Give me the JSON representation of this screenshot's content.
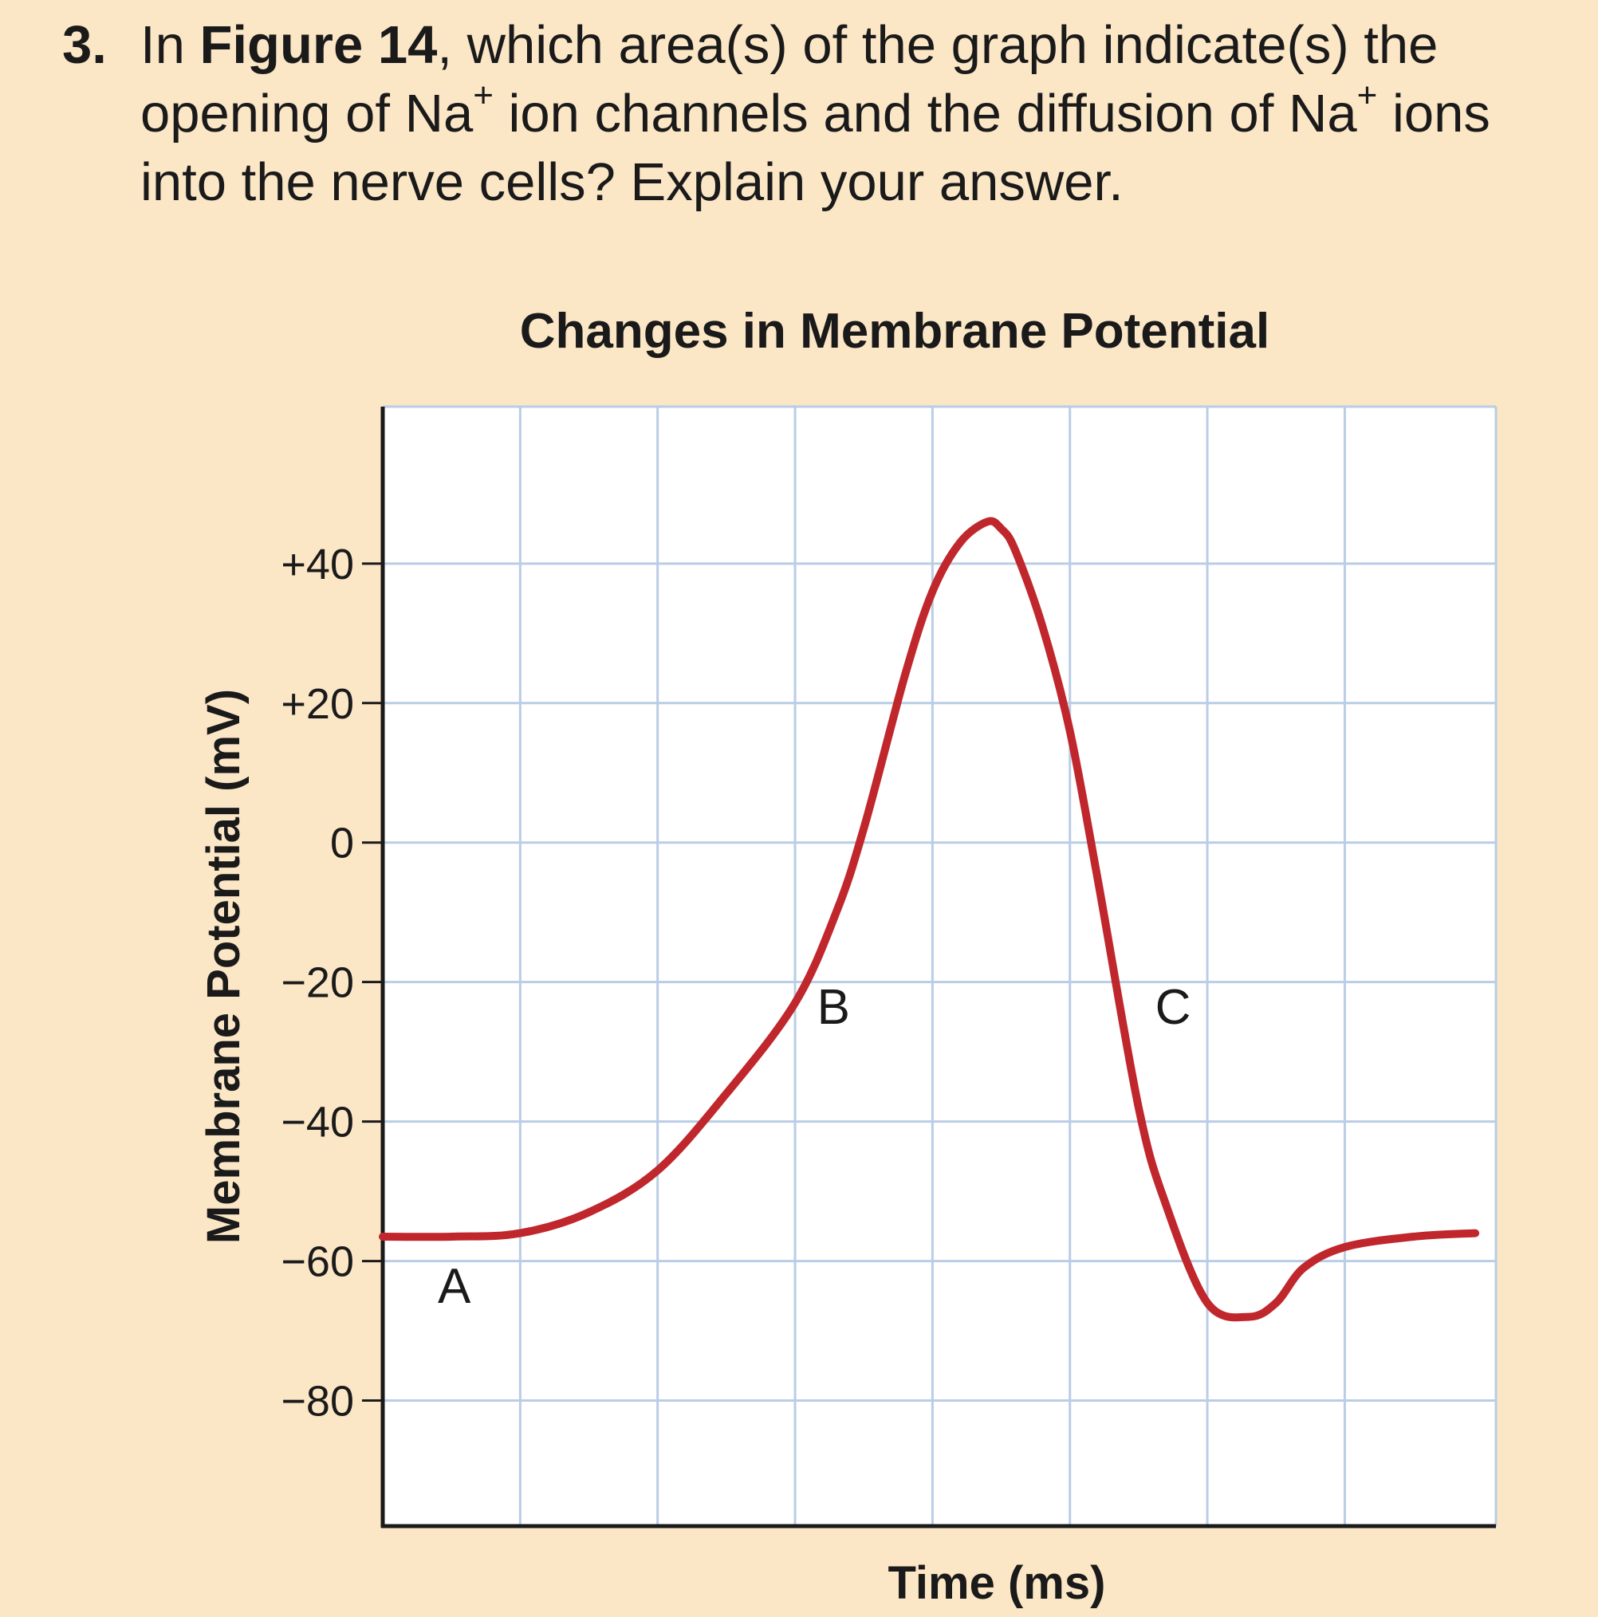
{
  "question": {
    "number": "3.",
    "part1": "In ",
    "figure_ref": "Figure 14",
    "part2": ", which area(s) of the graph indicate(s) the opening of Na",
    "sup1": "+",
    "part3": " ion channels and the diffusion of Na",
    "sup2": "+",
    "part4": " ions into the nerve cells? Explain your answer."
  },
  "chart_data": {
    "type": "line",
    "title": "Changes in Membrane Potential",
    "xlabel": "Time (ms)",
    "ylabel": "Membrane Potential (mV)",
    "ylim": [
      -98,
      62.5
    ],
    "xlim": [
      0,
      8.1
    ],
    "yticks": [
      {
        "value": 40,
        "label": "+40"
      },
      {
        "value": 20,
        "label": "+20"
      },
      {
        "value": 0,
        "label": "0"
      },
      {
        "value": -20,
        "label": "−20"
      },
      {
        "value": -40,
        "label": "−40"
      },
      {
        "value": -60,
        "label": "−60"
      },
      {
        "value": -80,
        "label": "−80"
      }
    ],
    "x_gridlines": [
      1,
      2,
      3,
      4,
      5,
      6,
      7
    ],
    "x_tick_labels": [],
    "grid": true,
    "series": [
      {
        "color": "#c0272d",
        "x": [
          0,
          0.5,
          1.0,
          1.5,
          2.0,
          2.5,
          3.0,
          3.3,
          3.5,
          3.8,
          4.0,
          4.2,
          4.4,
          4.5,
          4.6,
          4.8,
          5.0,
          5.2,
          5.5,
          5.7,
          6.0,
          6.3,
          6.5,
          6.7,
          7.0,
          7.5,
          7.95
        ],
        "y": [
          -56.5,
          -56.5,
          -56,
          -53,
          -47,
          -36,
          -23,
          -10,
          2,
          24,
          36,
          43,
          46,
          45,
          42,
          31,
          16,
          -5,
          -38,
          -52,
          -66,
          -68,
          -66,
          -61,
          -58,
          -56.5,
          -56
        ]
      }
    ],
    "annotations": [
      {
        "text": "A",
        "x": 0.52,
        "y": -66
      },
      {
        "text": "B",
        "x": 3.28,
        "y": -26
      },
      {
        "text": "C",
        "x": 5.75,
        "y": -26
      }
    ]
  }
}
